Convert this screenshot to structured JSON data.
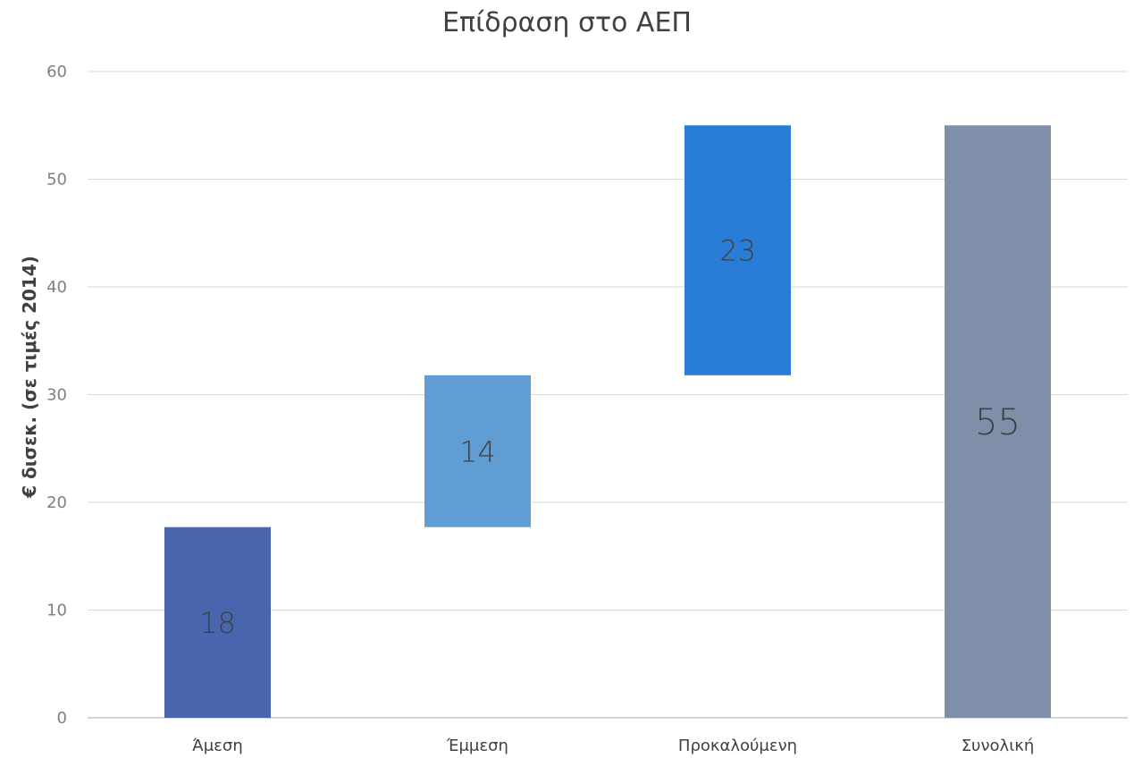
{
  "chart_data": {
    "type": "bar",
    "title": "Επίδραση στο ΑΕΠ",
    "xlabel": "",
    "ylabel": "€ δισεκ. (σε τιμές 2014)",
    "categories": [
      "Άμεση",
      "Έμμεση",
      "Προκαλούμενη",
      "Συνολική"
    ],
    "series": [
      {
        "values": [
          18,
          14,
          23,
          55
        ],
        "bases": [
          0,
          17.7,
          31.8,
          0
        ],
        "value_labels": [
          "18",
          "14",
          "23",
          "55"
        ]
      }
    ],
    "bar_colors": [
      "#4865ae",
      "#5f9dd3",
      "#2a7dd7",
      "#7f8fa9"
    ],
    "ylim": [
      0,
      60
    ],
    "yticks": [
      0,
      10,
      20,
      30,
      40,
      50,
      60
    ],
    "grid": true,
    "legend": "none"
  }
}
